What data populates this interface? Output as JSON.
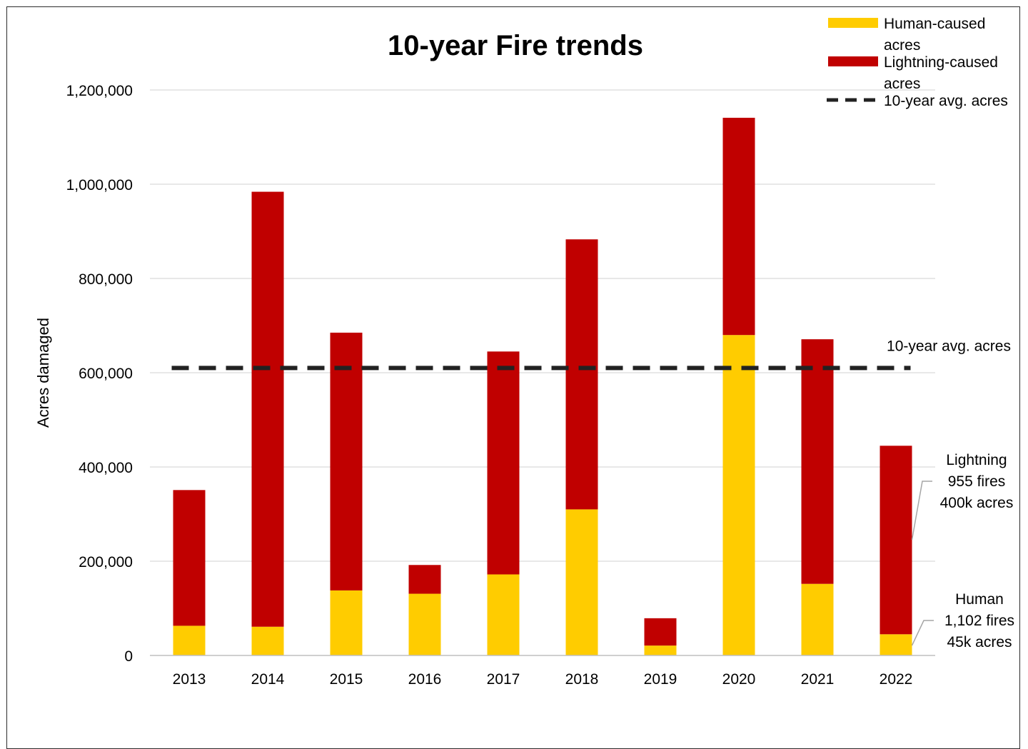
{
  "chart_data": {
    "type": "bar",
    "stacked": true,
    "title": "10-year Fire trends",
    "xlabel": "",
    "ylabel": "Acres damaged",
    "ylim": [
      0,
      1200000
    ],
    "yticks": [
      0,
      200000,
      400000,
      600000,
      800000,
      1000000,
      1200000
    ],
    "ytick_labels": [
      "0",
      "200,000",
      "400,000",
      "600,000",
      "800,000",
      "1,000,000",
      "1,200,000"
    ],
    "grid": true,
    "categories": [
      "2013",
      "2014",
      "2015",
      "2016",
      "2017",
      "2018",
      "2019",
      "2020",
      "2021",
      "2022"
    ],
    "series": [
      {
        "name": "Human-caused acres",
        "color": "#FFCC00",
        "values": [
          63000,
          61000,
          138000,
          131000,
          172000,
          310000,
          21000,
          680000,
          152000,
          45000
        ]
      },
      {
        "name": "Lightning-caused acres",
        "color": "#C00000",
        "values": [
          288000,
          923000,
          547000,
          61000,
          473000,
          573000,
          58000,
          461000,
          519000,
          400000
        ]
      }
    ],
    "reference_line": {
      "name": "10-year avg. acres",
      "value": 610000,
      "style": "dashed",
      "color": "#222222",
      "label": "10-year avg. acres"
    },
    "legend": {
      "placement": "top-right",
      "entries": [
        {
          "lines": [
            "Human-caused",
            "acres"
          ],
          "color": "#FFCC00",
          "kind": "bar"
        },
        {
          "lines": [
            "Lightning-caused",
            "acres"
          ],
          "color": "#C00000",
          "kind": "bar"
        },
        {
          "lines": [
            "10-year avg. acres"
          ],
          "color": "#222222",
          "kind": "dashed-line"
        }
      ]
    },
    "annotations": [
      {
        "target": "2022-lightning",
        "lines": [
          "Lightning",
          "955 fires",
          "400k acres"
        ]
      },
      {
        "target": "2022-human",
        "lines": [
          "Human",
          "1,102 fires",
          "45k acres"
        ]
      }
    ]
  }
}
